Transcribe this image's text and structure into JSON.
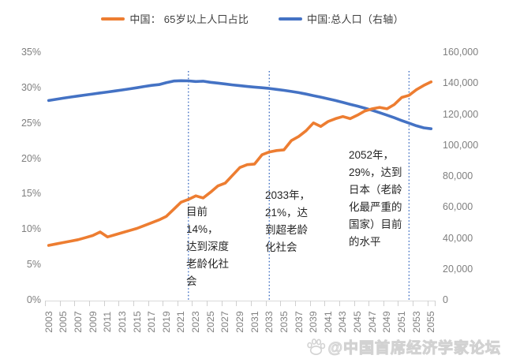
{
  "legend": [
    {
      "label": "中国： 65岁以上人口占比",
      "color": "#ED7D31"
    },
    {
      "label": "中国:总人口（右轴）",
      "color": "#4472C4"
    }
  ],
  "chart_data": {
    "type": "line",
    "x": [
      2003,
      2004,
      2005,
      2006,
      2007,
      2008,
      2009,
      2010,
      2011,
      2012,
      2013,
      2014,
      2015,
      2016,
      2017,
      2018,
      2019,
      2020,
      2021,
      2022,
      2023,
      2024,
      2025,
      2026,
      2027,
      2028,
      2029,
      2030,
      2031,
      2032,
      2033,
      2034,
      2035,
      2036,
      2037,
      2038,
      2039,
      2040,
      2041,
      2042,
      2043,
      2044,
      2045,
      2046,
      2047,
      2048,
      2049,
      2050,
      2051,
      2052,
      2053,
      2054,
      2055
    ],
    "series": [
      {
        "name": "中国： 65岁以上人口占比",
        "axis": "left",
        "unit": "%",
        "color": "#ED7D31",
        "values": [
          7.8,
          8.0,
          8.2,
          8.4,
          8.6,
          8.9,
          9.2,
          9.7,
          9.0,
          9.3,
          9.6,
          9.9,
          10.2,
          10.6,
          11.0,
          11.4,
          11.9,
          12.9,
          13.9,
          14.3,
          14.8,
          14.5,
          15.3,
          16.2,
          16.6,
          17.7,
          18.8,
          19.2,
          19.3,
          20.6,
          21.0,
          21.2,
          21.3,
          22.6,
          23.2,
          24.0,
          25.1,
          24.6,
          25.3,
          25.7,
          26.0,
          25.7,
          26.2,
          26.8,
          27.1,
          27.3,
          27.1,
          27.7,
          28.7,
          29.0,
          29.8,
          30.4,
          30.9
        ]
      },
      {
        "name": "中国:总人口（右轴）",
        "axis": "right",
        "unit": "万人",
        "color": "#4472C4",
        "values": [
          129227,
          129988,
          130756,
          131448,
          132129,
          132802,
          133450,
          134091,
          134735,
          135404,
          136072,
          136782,
          137462,
          138271,
          139008,
          139538,
          140800,
          141800,
          142000,
          141900,
          141500,
          141700,
          141000,
          140500,
          139900,
          139300,
          138800,
          138300,
          137900,
          137500,
          137000,
          136400,
          135800,
          135100,
          134300,
          133400,
          132400,
          131400,
          130300,
          129200,
          128000,
          126800,
          125600,
          124300,
          122900,
          121400,
          119800,
          118100,
          116300,
          114600,
          112900,
          111600,
          111000
        ]
      }
    ],
    "left_axis": {
      "min": 0,
      "max": 35,
      "tick_labels": [
        "0%",
        "5%",
        "10%",
        "15%",
        "20%",
        "25%",
        "30%",
        "35%"
      ]
    },
    "right_axis": {
      "min": 0,
      "max": 160000,
      "tick_labels": [
        "0",
        "20,000",
        "40,000",
        "60,000",
        "80,000",
        "100,000",
        "120,000",
        "140,000",
        "160,000"
      ]
    },
    "x_tick_labels": [
      "2003",
      "2005",
      "2007",
      "2009",
      "2011",
      "2013",
      "2015",
      "2017",
      "2019",
      "2021",
      "2023",
      "2025",
      "2027",
      "2029",
      "2031",
      "2033",
      "2035",
      "2037",
      "2039",
      "2041",
      "2043",
      "2045",
      "2047",
      "2049",
      "2051",
      "2053",
      "2055"
    ],
    "reference_lines": [
      {
        "year": 2022,
        "style": "dotted",
        "color": "#4472C4"
      },
      {
        "year": 2033,
        "style": "dotted",
        "color": "#4472C4"
      },
      {
        "year": 2052,
        "style": "dotted",
        "color": "#4472C4"
      }
    ],
    "grid": false,
    "legend_position": "top"
  },
  "annotations": [
    {
      "id": "2022",
      "text": "目前14%，\n达到深度\n老龄化社\n会"
    },
    {
      "id": "2033",
      "text": "2033年，\n21%，达\n到超老龄\n化社会"
    },
    {
      "id": "2052",
      "text": "2052年，\n29%，达到\n日本（老龄\n化最严重的\n国家）目前\n的水平"
    }
  ],
  "watermark": {
    "text": "@中国首席经济学家论坛"
  },
  "colors": {
    "series_aging": "#ED7D31",
    "series_population": "#4472C4",
    "axis_text": "#7f7f7f",
    "annotation_text": "#262626",
    "watermark": "#d2d2d2"
  }
}
